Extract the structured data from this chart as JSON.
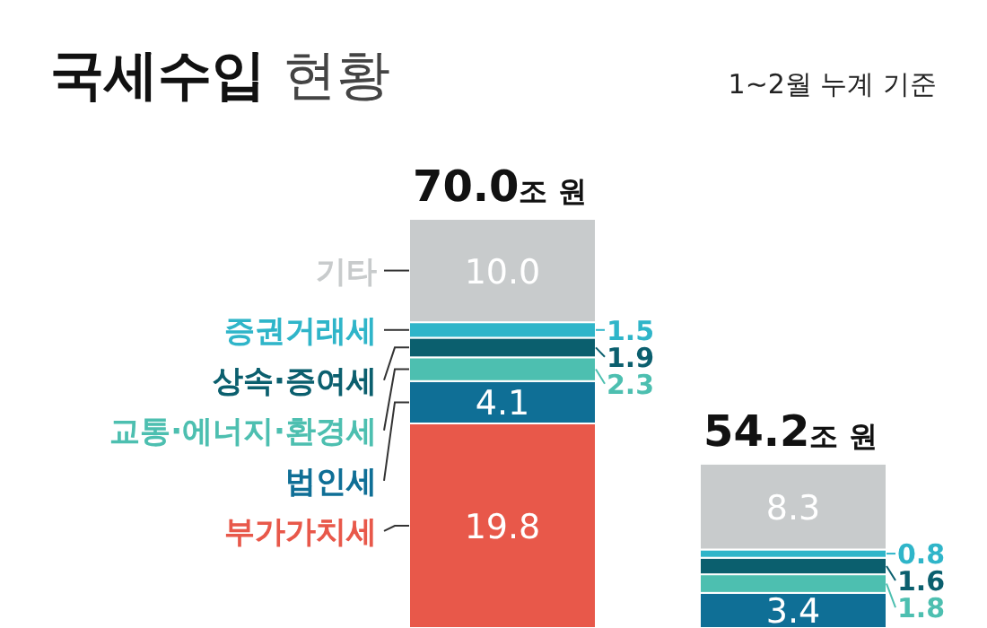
{
  "chart_data": {
    "type": "bar",
    "title": "국세수입 현황",
    "subtitle": "1~2월 누계 기준",
    "stacked": true,
    "categories": [
      null,
      null
    ],
    "annotations": [
      "70.0조 원",
      "54.2조 원"
    ],
    "series": [
      {
        "name": "부가가치세",
        "color": "#e8584a",
        "values": [
          19.8,
          null
        ],
        "value_labels": [
          "19.8",
          null
        ]
      },
      {
        "name": "법인세",
        "color": "#0f6f96",
        "values": [
          4.1,
          3.4
        ],
        "value_labels": [
          "4.1",
          "3.4"
        ]
      },
      {
        "name": "교통·에너지·환경세",
        "color": "#4dbfb0",
        "values": [
          2.3,
          1.8
        ],
        "value_labels": [
          "2.3",
          "1.8"
        ]
      },
      {
        "name": "상속·증여세",
        "color": "#0b5f6e",
        "values": [
          1.9,
          1.6
        ],
        "value_labels": [
          "1.9",
          "1.6"
        ]
      },
      {
        "name": "증권거래세",
        "color": "#2fb5c9",
        "values": [
          1.5,
          0.8
        ],
        "value_labels": [
          "1.5",
          "0.8"
        ]
      },
      {
        "name": "기타",
        "color": "#c8cbcc",
        "values": [
          10.0,
          8.3
        ],
        "value_labels": [
          "10.0",
          "8.3"
        ]
      }
    ]
  }
}
